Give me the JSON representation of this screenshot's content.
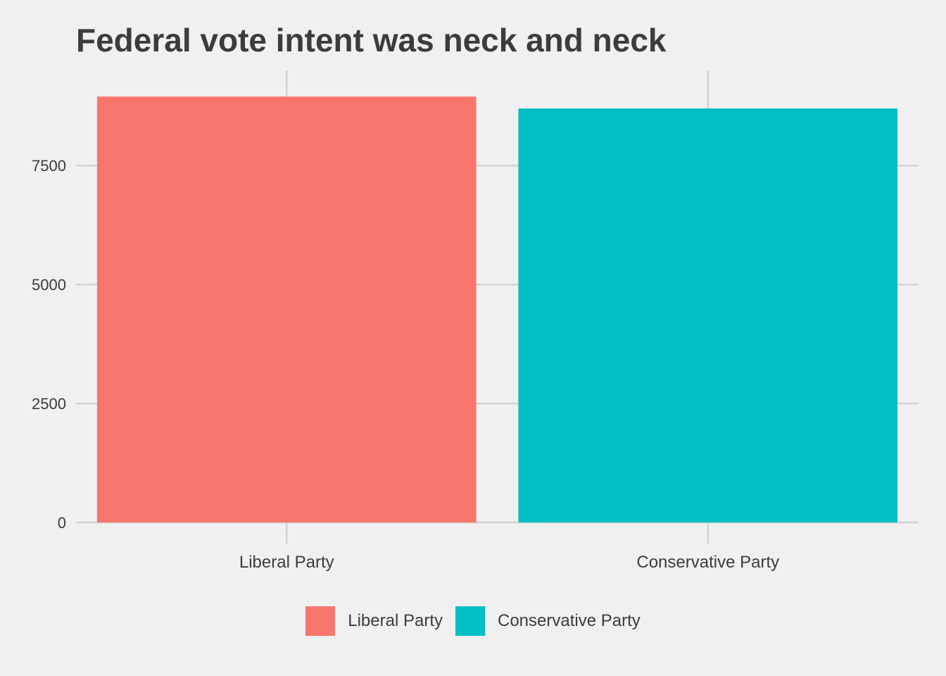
{
  "chart_data": {
    "type": "bar",
    "title": "Federal vote intent was neck and neck",
    "xlabel": "",
    "ylabel": "",
    "categories": [
      "Liberal Party",
      "Conservative Party"
    ],
    "values": [
      8950,
      8700
    ],
    "colors": [
      "#f8766d",
      "#00bfc4"
    ],
    "ylim": [
      0,
      9500
    ],
    "yticks": [
      0,
      2500,
      5000,
      7500
    ],
    "grid": true,
    "legend": {
      "position": "bottom",
      "entries": [
        "Liberal Party",
        "Conservative Party"
      ]
    }
  }
}
